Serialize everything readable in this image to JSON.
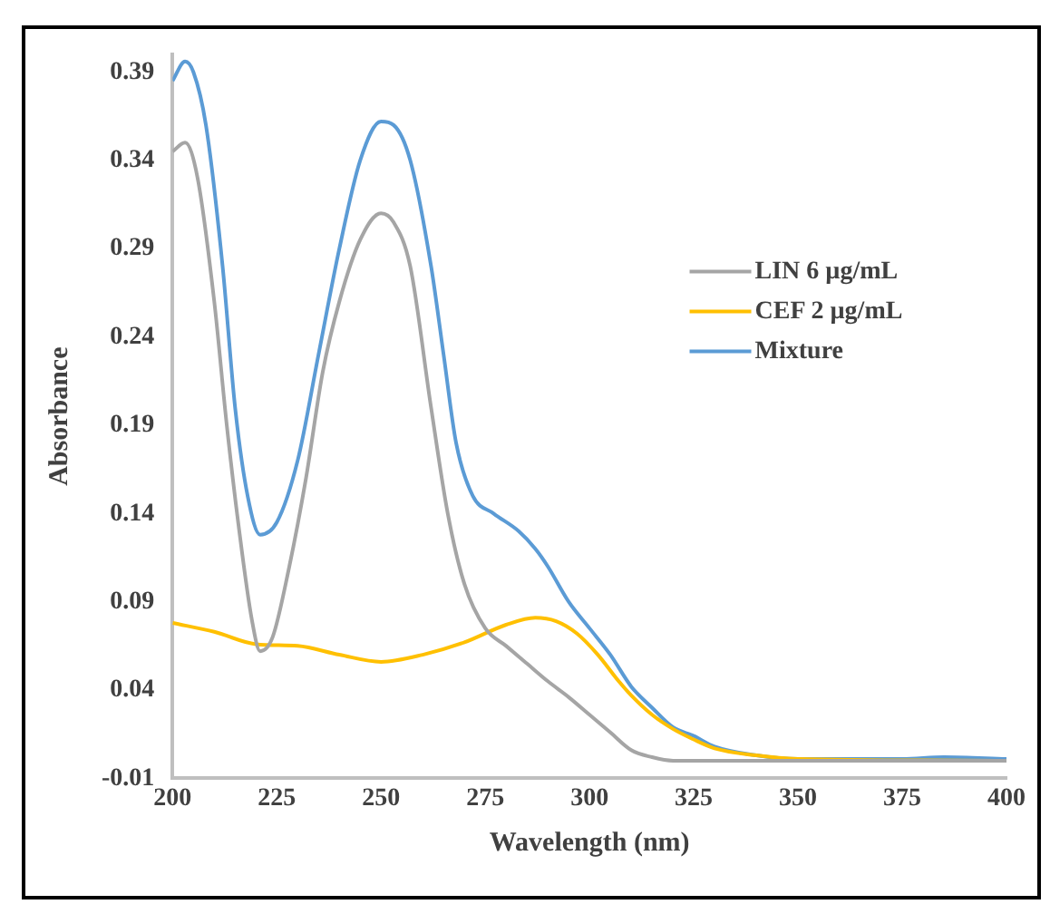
{
  "chart_data": {
    "type": "line",
    "xlabel": "Wavelength (nm)",
    "ylabel": "Absorbance",
    "xlim": [
      200,
      400
    ],
    "xticks": [
      200,
      225,
      250,
      275,
      300,
      325,
      350,
      375,
      400
    ],
    "ylim": [
      -0.01,
      0.4
    ],
    "yticks": [
      -0.01,
      0.04,
      0.09,
      0.14,
      0.19,
      0.24,
      0.29,
      0.34,
      0.39
    ],
    "grid": false,
    "legend": "right",
    "marker": "none",
    "line_style": "solid",
    "series": [
      {
        "name": "LIN 6 µg/mL",
        "color": "#a5a5a5",
        "x": [
          200,
          203,
          206,
          210,
          213,
          216,
          219,
          221,
          224,
          228,
          232,
          236,
          240,
          245,
          250,
          253,
          257,
          262,
          266,
          270,
          275,
          280,
          285,
          290,
          295,
          300,
          305,
          310,
          315,
          320,
          350,
          400
        ],
        "values": [
          0.345,
          0.35,
          0.33,
          0.26,
          0.19,
          0.13,
          0.08,
          0.062,
          0.07,
          0.11,
          0.16,
          0.22,
          0.26,
          0.295,
          0.31,
          0.305,
          0.28,
          0.2,
          0.14,
          0.1,
          0.075,
          0.065,
          0.055,
          0.045,
          0.036,
          0.026,
          0.016,
          0.006,
          0.002,
          0,
          0,
          0
        ]
      },
      {
        "name": "CEF 2 µg/mL",
        "color": "#ffc000",
        "x": [
          200,
          210,
          220,
          230,
          240,
          250,
          260,
          270,
          280,
          287,
          292,
          297,
          302,
          307,
          310,
          315,
          320,
          325,
          330,
          340,
          350,
          400
        ],
        "values": [
          0.078,
          0.073,
          0.066,
          0.065,
          0.06,
          0.056,
          0.06,
          0.067,
          0.077,
          0.081,
          0.079,
          0.072,
          0.06,
          0.045,
          0.037,
          0.026,
          0.018,
          0.012,
          0.007,
          0.003,
          0.001,
          0
        ]
      },
      {
        "name": "Mixture",
        "color": "#5b9bd5",
        "x": [
          200,
          203,
          205,
          208,
          212,
          215,
          218,
          221,
          225,
          230,
          235,
          240,
          245,
          250,
          253,
          257,
          262,
          265,
          268,
          272,
          277,
          283,
          287,
          290,
          295,
          300,
          305,
          310,
          315,
          320,
          325,
          330,
          340,
          350,
          375,
          385,
          400
        ],
        "values": [
          0.385,
          0.396,
          0.39,
          0.36,
          0.28,
          0.2,
          0.15,
          0.128,
          0.135,
          0.17,
          0.23,
          0.29,
          0.34,
          0.362,
          0.36,
          0.34,
          0.28,
          0.23,
          0.18,
          0.15,
          0.14,
          0.13,
          0.12,
          0.11,
          0.09,
          0.075,
          0.06,
          0.042,
          0.03,
          0.019,
          0.014,
          0.008,
          0.003,
          0.001,
          0.001,
          0.002,
          0.001
        ]
      }
    ]
  }
}
